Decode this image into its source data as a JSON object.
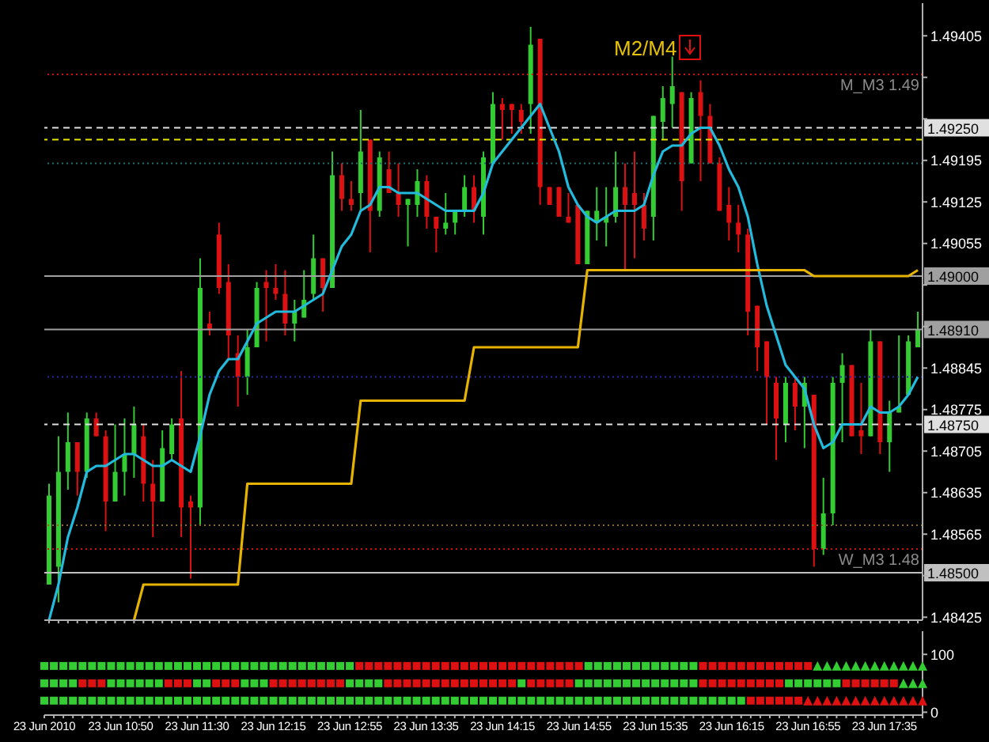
{
  "chart_data": [
    {
      "type": "candlestick",
      "categories": [
        null,
        null,
        null,
        null,
        null,
        null,
        null,
        null,
        null,
        null,
        null,
        null,
        null,
        null,
        null,
        null,
        null,
        null,
        null,
        null,
        null,
        null,
        null,
        null,
        null,
        null,
        null,
        null,
        null,
        null,
        null,
        null,
        null,
        null,
        null,
        null,
        null,
        null,
        null,
        null,
        null,
        null,
        null,
        null,
        null,
        null,
        null,
        null,
        null,
        null,
        null,
        null,
        null,
        null,
        null,
        null,
        null,
        null,
        null,
        null,
        null,
        null,
        null,
        null,
        null,
        null,
        null,
        null,
        null,
        null,
        null,
        null,
        null,
        null,
        null,
        null,
        null,
        null,
        null,
        null,
        null,
        null,
        null,
        null,
        null,
        null,
        null,
        null,
        null,
        null,
        null,
        null,
        null
      ],
      "ohlc": [
        [
          1.4848,
          1.4865,
          1.4848,
          1.4863
        ],
        [
          1.4851,
          1.4873,
          1.4845,
          1.4867
        ],
        [
          1.4867,
          1.4877,
          1.4864,
          1.4872
        ],
        [
          1.4872,
          1.4872,
          1.4863,
          1.4867
        ],
        [
          1.4867,
          1.4877,
          1.4866,
          1.4876
        ],
        [
          1.4876,
          1.4877,
          1.4873,
          1.4873
        ],
        [
          1.4873,
          1.4874,
          1.4857,
          1.4862
        ],
        [
          1.4862,
          1.4875,
          1.4862,
          1.4867
        ],
        [
          1.4867,
          1.4876,
          1.4863,
          1.487
        ],
        [
          1.487,
          1.4878,
          1.4866,
          1.4875
        ],
        [
          1.4873,
          1.4875,
          1.4862,
          1.4865
        ],
        [
          1.4865,
          1.4869,
          1.4856,
          1.4862
        ],
        [
          1.4862,
          1.4874,
          1.4862,
          1.4871
        ],
        [
          1.487,
          1.4876,
          1.4869,
          1.4875
        ],
        [
          1.4876,
          1.4884,
          1.4856,
          1.4861
        ],
        [
          1.4862,
          1.4863,
          1.4849,
          1.4861
        ],
        [
          1.4861,
          1.4903,
          1.4858,
          1.4898
        ],
        [
          1.4892,
          1.4894,
          1.489,
          1.4891
        ],
        [
          1.4907,
          1.4909,
          1.4897,
          1.4898
        ],
        [
          1.4899,
          1.4902,
          1.4886,
          1.489
        ],
        [
          1.4887,
          1.489,
          1.4878,
          1.4883
        ],
        [
          1.4883,
          1.4891,
          1.488,
          1.4888
        ],
        [
          1.4888,
          1.4899,
          1.4888,
          1.4898
        ],
        [
          1.4899,
          1.4901,
          1.4889,
          1.4898
        ],
        [
          1.4898,
          1.4902,
          1.4896,
          1.4897
        ],
        [
          1.4897,
          1.4901,
          1.489,
          1.4892
        ],
        [
          1.4892,
          1.4896,
          1.4889,
          1.4894
        ],
        [
          1.4893,
          1.4901,
          1.4893,
          1.4896
        ],
        [
          1.4897,
          1.4907,
          1.4896,
          1.4903
        ],
        [
          1.4903,
          1.4903,
          1.4894,
          1.4898
        ],
        [
          1.4898,
          1.4921,
          1.4898,
          1.4917
        ],
        [
          1.4917,
          1.4919,
          1.4911,
          1.4913
        ],
        [
          1.4913,
          1.4916,
          1.4911,
          1.4912
        ],
        [
          1.4914,
          1.4928,
          1.4911,
          1.4921
        ],
        [
          1.4923,
          1.4923,
          1.4904,
          1.4911
        ],
        [
          1.4911,
          1.4921,
          1.491,
          1.492
        ],
        [
          1.4918,
          1.4921,
          1.4914,
          1.4914
        ],
        [
          1.4914,
          1.4919,
          1.491,
          1.4912
        ],
        [
          1.4912,
          1.4913,
          1.4905,
          1.4913
        ],
        [
          1.4912,
          1.4918,
          1.491,
          1.4916
        ],
        [
          1.4916,
          1.4917,
          1.4908,
          1.491
        ],
        [
          1.491,
          1.491,
          1.4904,
          1.4908
        ],
        [
          1.4908,
          1.4914,
          1.4907,
          1.4909
        ],
        [
          1.4909,
          1.4911,
          1.4907,
          1.4911
        ],
        [
          1.4911,
          1.4917,
          1.491,
          1.4915
        ],
        [
          1.4915,
          1.4917,
          1.4909,
          1.4911
        ],
        [
          1.491,
          1.4921,
          1.4907,
          1.492
        ],
        [
          1.4919,
          1.4931,
          1.4919,
          1.4929
        ],
        [
          1.4929,
          1.493,
          1.4923,
          1.4928
        ],
        [
          1.4929,
          1.4929,
          1.4924,
          1.4928
        ],
        [
          1.4928,
          1.4929,
          1.4924,
          1.4926
        ],
        [
          1.4929,
          1.4942,
          1.4924,
          1.4939
        ],
        [
          1.494,
          1.494,
          1.4912,
          1.4915
        ],
        [
          1.4915,
          1.4915,
          1.4912,
          1.4912
        ],
        [
          1.4915,
          1.4915,
          1.491,
          1.491
        ],
        [
          1.491,
          1.4914,
          1.4909,
          1.4909
        ],
        [
          1.4912,
          1.4912,
          1.4902,
          1.4902
        ],
        [
          1.4902,
          1.4911,
          1.4902,
          1.4911
        ],
        [
          1.4909,
          1.4915,
          1.4906,
          1.4911
        ],
        [
          1.4909,
          1.4915,
          1.4905,
          1.491
        ],
        [
          1.491,
          1.4921,
          1.4909,
          1.4915
        ],
        [
          1.4915,
          1.4919,
          1.4901,
          1.4912
        ],
        [
          1.4914,
          1.4921,
          1.4903,
          1.4912
        ],
        [
          1.4912,
          1.4914,
          1.4906,
          1.4908
        ],
        [
          1.491,
          1.4927,
          1.4906,
          1.4927
        ],
        [
          1.4926,
          1.4932,
          1.4923,
          1.493
        ],
        [
          1.4929,
          1.4937,
          1.4925,
          1.4932
        ],
        [
          1.4931,
          1.4931,
          1.4911,
          1.4916
        ],
        [
          1.4919,
          1.4931,
          1.4919,
          1.493
        ],
        [
          1.4931,
          1.4933,
          1.4916,
          1.4927
        ],
        [
          1.4927,
          1.4929,
          1.4919,
          1.4919
        ],
        [
          1.4919,
          1.492,
          1.4911,
          1.4911
        ],
        [
          1.4912,
          1.4915,
          1.4906,
          1.4909
        ],
        [
          1.4909,
          1.4912,
          1.4904,
          1.4907
        ],
        [
          1.4907,
          1.4908,
          1.489,
          1.4894
        ],
        [
          1.4895,
          1.4895,
          1.4884,
          1.4888
        ],
        [
          1.4889,
          1.4889,
          1.4875,
          1.4883
        ],
        [
          1.4882,
          1.4883,
          1.4869,
          1.4876
        ],
        [
          1.4875,
          1.4883,
          1.4872,
          1.4882
        ],
        [
          1.4882,
          1.4883,
          1.4874,
          1.4878
        ],
        [
          1.4878,
          1.4883,
          1.4871,
          1.4882
        ],
        [
          1.488,
          1.488,
          1.4851,
          1.4854
        ],
        [
          1.4854,
          1.4866,
          1.4853,
          1.486
        ],
        [
          1.486,
          1.4883,
          1.4858,
          1.4882
        ],
        [
          1.4882,
          1.4887,
          1.4872,
          1.4885
        ],
        [
          1.4885,
          1.4885,
          1.4873,
          1.4873
        ],
        [
          1.4874,
          1.4882,
          1.487,
          1.4873
        ],
        [
          1.4873,
          1.4891,
          1.4873,
          1.4889
        ],
        [
          1.4889,
          1.4889,
          1.487,
          1.4872
        ],
        [
          1.4872,
          1.4879,
          1.4867,
          1.4877
        ],
        [
          1.4877,
          1.489,
          1.4877,
          1.4878
        ],
        [
          1.488,
          1.489,
          1.488,
          1.4889
        ],
        [
          1.4888,
          1.4894,
          1.4888,
          1.4891
        ]
      ],
      "colors": [
        "#33cc33",
        "#33cc33",
        "#33cc33",
        "#dd1111",
        "#33cc33",
        "#dd1111",
        "#dd1111",
        "#33cc33",
        "#33cc33",
        "#33cc33",
        "#dd1111",
        "#dd1111",
        "#33cc33",
        "#33cc33",
        "#dd1111",
        "#dd1111",
        "#33cc33",
        "#dd1111",
        "#dd1111",
        "#dd1111",
        "#dd1111",
        "#33cc33",
        "#33cc33",
        "#dd1111",
        "#dd1111",
        "#dd1111",
        "#33cc33",
        "#33cc33",
        "#33cc33",
        "#dd1111",
        "#33cc33",
        "#dd1111",
        "#dd1111",
        "#33cc33",
        "#dd1111",
        "#33cc33",
        "#dd1111",
        "#dd1111",
        "#33cc33",
        "#33cc33",
        "#dd1111",
        "#dd1111",
        "#33cc33",
        "#33cc33",
        "#33cc33",
        "#dd1111",
        "#33cc33",
        "#33cc33",
        "#dd1111",
        "#dd1111",
        "#dd1111",
        "#33cc33",
        "#dd1111",
        "#dd1111",
        "#dd1111",
        "#dd1111",
        "#dd1111",
        "#33cc33",
        "#33cc33",
        "#33cc33",
        "#33cc33",
        "#dd1111",
        "#dd1111",
        "#dd1111",
        "#33cc33",
        "#33cc33",
        "#33cc33",
        "#dd1111",
        "#33cc33",
        "#dd1111",
        "#dd1111",
        "#dd1111",
        "#dd1111",
        "#dd1111",
        "#dd1111",
        "#dd1111",
        "#dd1111",
        "#dd1111",
        "#33cc33",
        "#dd1111",
        "#33cc33",
        "#dd1111",
        "#33cc33",
        "#33cc33",
        "#33cc33",
        "#dd1111",
        "#dd1111",
        "#33cc33",
        "#dd1111",
        "#33cc33",
        "#33cc33",
        "#33cc33",
        "#33cc33"
      ],
      "series": [
        {
          "type": "line",
          "color": "#22bbdd",
          "values": [
            1.4842,
            1.4848,
            1.4856,
            1.4861,
            1.4867,
            1.4868,
            1.4868,
            1.4869,
            1.487,
            1.487,
            1.4869,
            1.4868,
            1.4868,
            1.4869,
            1.4868,
            1.4867,
            1.4873,
            1.488,
            1.4884,
            1.4886,
            1.4886,
            1.4889,
            1.4892,
            1.4893,
            1.4894,
            1.4894,
            1.4894,
            1.4895,
            1.4896,
            1.4897,
            1.4901,
            1.4905,
            1.4907,
            1.4911,
            1.4912,
            1.4915,
            1.4915,
            1.4914,
            1.4914,
            1.4914,
            1.4913,
            1.4912,
            1.4911,
            1.4911,
            1.4911,
            1.4911,
            1.4914,
            1.4919,
            1.4921,
            1.4923,
            1.4925,
            1.4927,
            1.4929,
            1.4925,
            1.4921,
            1.4915,
            1.4912,
            1.491,
            1.4909,
            1.491,
            1.4911,
            1.4911,
            1.4911,
            1.4912,
            1.4917,
            1.4921,
            1.4922,
            1.4922,
            1.4924,
            1.4925,
            1.4925,
            1.4922,
            1.4918,
            1.4915,
            1.491,
            1.4902,
            1.4895,
            1.489,
            1.4885,
            1.4883,
            1.4881,
            1.4875,
            1.4871,
            1.4872,
            1.4875,
            1.4875,
            1.4875,
            1.4878,
            1.4877,
            1.4877,
            1.4878,
            1.488,
            1.4883
          ]
        },
        {
          "type": "line",
          "color": "#e6b400",
          "values": [
            null,
            null,
            null,
            null,
            null,
            null,
            null,
            null,
            null,
            1.4842,
            1.4848,
            1.4848,
            1.4848,
            1.4848,
            1.4848,
            1.4848,
            1.4848,
            1.4848,
            1.4848,
            1.4848,
            1.4848,
            1.4865,
            1.4865,
            1.4865,
            1.4865,
            1.4865,
            1.4865,
            1.4865,
            1.4865,
            1.4865,
            1.4865,
            1.4865,
            1.4865,
            1.4879,
            1.4879,
            1.4879,
            1.4879,
            1.4879,
            1.4879,
            1.4879,
            1.4879,
            1.4879,
            1.4879,
            1.4879,
            1.4879,
            1.4888,
            1.4888,
            1.4888,
            1.4888,
            1.4888,
            1.4888,
            1.4888,
            1.4888,
            1.4888,
            1.4888,
            1.4888,
            1.4888,
            1.4901,
            1.4901,
            1.4901,
            1.4901,
            1.4901,
            1.4901,
            1.4901,
            1.4901,
            1.4901,
            1.4901,
            1.4901,
            1.4901,
            1.4901,
            1.4901,
            1.4901,
            1.4901,
            1.4901,
            1.4901,
            1.4901,
            1.4901,
            1.4901,
            1.4901,
            1.4901,
            1.4901,
            1.49,
            1.49,
            1.49,
            1.49,
            1.49,
            1.49,
            1.49,
            1.49,
            1.49,
            1.49,
            1.49,
            1.4901
          ]
        }
      ],
      "ylim": [
        1.4842,
        1.4946
      ],
      "yticks": [
        1.48425,
        {
          "value": 1.48495,
          "label": null
        },
        1.48565,
        1.48635,
        1.48705,
        1.48775,
        1.48845,
        {
          "value": 1.48915,
          "label": null
        },
        {
          "value": 1.48985,
          "label": null
        },
        1.49055,
        1.49125,
        1.49195,
        {
          "value": 1.49265,
          "label": null
        },
        {
          "value": 1.49335,
          "label": null
        },
        1.49405
      ],
      "tick_labels": "y",
      "ref_lines": [
        {
          "axis": "y",
          "value": 1.4934,
          "label": "M_M3 1.49",
          "color": "#cc1111",
          "line_style": "dotted"
        },
        {
          "axis": "y",
          "value": 1.4925,
          "label": "1.49250",
          "color": "#e0e0e0",
          "line_style": "dashed"
        },
        {
          "axis": "y",
          "value": 1.4923,
          "color": "#e6e600",
          "line_style": "dashed"
        },
        {
          "axis": "y",
          "value": 1.4919,
          "color": "#1f6f6f",
          "line_style": "dotted"
        },
        {
          "axis": "y",
          "value": 1.49,
          "label": "1.49000",
          "color": "#a0a0a0",
          "line_style": "solid"
        },
        {
          "axis": "y",
          "value": 1.4891,
          "label": "1.48910",
          "color": "#a0a0a0",
          "line_style": "solid"
        },
        {
          "axis": "y",
          "value": 1.4883,
          "color": "#2a2a99",
          "line_style": "dotted"
        },
        {
          "axis": "y",
          "value": 1.4875,
          "label": "1.48750",
          "color": "#e0e0e0",
          "line_style": "dashed"
        },
        {
          "axis": "y",
          "value": 1.4858,
          "color": "#8a6a20",
          "line_style": "dotted"
        },
        {
          "axis": "y",
          "value": 1.4854,
          "label": "W_M3 1.48",
          "color": "#cc1111",
          "line_style": "dotted"
        },
        {
          "axis": "y",
          "value": 1.485,
          "label": "1.48500",
          "color": "#c0c0c0",
          "line_style": "solid"
        }
      ],
      "annotations": [
        "M2/M4"
      ]
    },
    {
      "type": "scatter",
      "categories": [
        "23 Jun 2010",
        null,
        null,
        null,
        null,
        null,
        null,
        null,
        "23 Jun 10:50",
        null,
        null,
        null,
        null,
        null,
        null,
        null,
        "23 Jun 11:30",
        null,
        null,
        null,
        null,
        null,
        null,
        null,
        "23 Jun 12:15",
        null,
        null,
        null,
        null,
        null,
        null,
        null,
        "23 Jun 12:55",
        null,
        null,
        null,
        null,
        null,
        null,
        null,
        "23 Jun 13:35",
        null,
        null,
        null,
        null,
        null,
        null,
        null,
        "23 Jun 14:15",
        null,
        null,
        null,
        null,
        null,
        null,
        null,
        "23 Jun 14:55",
        null,
        null,
        null,
        null,
        null,
        null,
        null,
        "23 Jun 15:35",
        null,
        null,
        null,
        null,
        null,
        null,
        null,
        "23 Jun 16:15",
        null,
        null,
        null,
        null,
        null,
        null,
        null,
        "23 Jun 16:55",
        null,
        null,
        null,
        null,
        null,
        null,
        null,
        "23 Jun 17:35",
        null,
        null,
        null,
        null
      ],
      "ylim": [
        -5,
        140
      ],
      "yticks": [
        0,
        100
      ],
      "series": [
        {
          "marker": "square",
          "values": [
            80,
            80,
            80,
            80,
            80,
            80,
            80,
            80,
            80,
            80,
            80,
            80,
            80,
            80,
            80,
            80,
            80,
            80,
            80,
            80,
            80,
            80,
            80,
            80,
            80,
            80,
            80,
            80,
            80,
            80,
            80,
            80,
            80,
            80,
            80,
            80,
            80,
            80,
            80,
            80,
            80,
            80,
            80,
            80,
            80,
            80,
            80,
            80,
            80,
            80,
            80,
            80,
            80,
            80,
            80,
            80,
            80,
            80,
            80,
            80,
            80,
            80,
            80,
            80,
            80,
            80,
            80,
            80,
            80,
            80,
            80,
            80,
            80,
            80,
            80,
            80,
            80,
            80,
            80,
            80,
            80,
            null,
            null,
            null,
            null,
            null,
            null,
            null,
            null,
            null,
            null,
            null,
            null
          ],
          "colors": [
            "#33cc33",
            "#33cc33",
            "#33cc33",
            "#33cc33",
            "#33cc33",
            "#33cc33",
            "#33cc33",
            "#33cc33",
            "#33cc33",
            "#33cc33",
            "#33cc33",
            "#33cc33",
            "#33cc33",
            "#33cc33",
            "#33cc33",
            "#33cc33",
            "#33cc33",
            "#33cc33",
            "#33cc33",
            "#33cc33",
            "#33cc33",
            "#33cc33",
            "#33cc33",
            "#33cc33",
            "#33cc33",
            "#33cc33",
            "#33cc33",
            "#33cc33",
            "#33cc33",
            "#33cc33",
            "#33cc33",
            "#33cc33",
            "#33cc33",
            "#dd1111",
            "#dd1111",
            "#dd1111",
            "#dd1111",
            "#dd1111",
            "#dd1111",
            "#dd1111",
            "#dd1111",
            "#dd1111",
            "#dd1111",
            "#dd1111",
            "#dd1111",
            "#dd1111",
            "#dd1111",
            "#dd1111",
            "#dd1111",
            "#dd1111",
            "#dd1111",
            "#dd1111",
            "#dd1111",
            "#dd1111",
            "#dd1111",
            "#dd1111",
            "#dd1111",
            "#33cc33",
            "#33cc33",
            "#33cc33",
            "#33cc33",
            "#33cc33",
            "#33cc33",
            "#33cc33",
            "#33cc33",
            "#33cc33",
            "#33cc33",
            "#33cc33",
            "#33cc33",
            "#dd1111",
            "#dd1111",
            "#dd1111",
            "#dd1111",
            "#dd1111",
            "#dd1111",
            "#dd1111",
            "#dd1111",
            "#dd1111",
            "#dd1111",
            "#dd1111",
            "#dd1111",
            null,
            null,
            null,
            null,
            null,
            null,
            null,
            null,
            null,
            null,
            null,
            null
          ]
        },
        {
          "marker": "triangle",
          "color": "#33cc33",
          "values": [
            null,
            null,
            null,
            null,
            null,
            null,
            null,
            null,
            null,
            null,
            null,
            null,
            null,
            null,
            null,
            null,
            null,
            null,
            null,
            null,
            null,
            null,
            null,
            null,
            null,
            null,
            null,
            null,
            null,
            null,
            null,
            null,
            null,
            null,
            null,
            null,
            null,
            null,
            null,
            null,
            null,
            null,
            null,
            null,
            null,
            null,
            null,
            null,
            null,
            null,
            null,
            null,
            null,
            null,
            null,
            null,
            null,
            null,
            null,
            null,
            null,
            null,
            null,
            null,
            null,
            null,
            null,
            null,
            null,
            null,
            null,
            null,
            null,
            null,
            null,
            null,
            null,
            null,
            null,
            null,
            null,
            80,
            80,
            80,
            80,
            80,
            80,
            80,
            80,
            80,
            80,
            80,
            80
          ]
        },
        {
          "marker": "square",
          "values": [
            50,
            50,
            50,
            50,
            50,
            50,
            50,
            50,
            50,
            50,
            50,
            50,
            50,
            50,
            50,
            50,
            50,
            50,
            50,
            50,
            50,
            50,
            50,
            50,
            50,
            50,
            50,
            50,
            50,
            50,
            50,
            50,
            50,
            50,
            50,
            50,
            50,
            50,
            50,
            50,
            50,
            50,
            50,
            50,
            50,
            50,
            50,
            50,
            50,
            50,
            50,
            50,
            50,
            50,
            50,
            50,
            50,
            50,
            50,
            50,
            50,
            50,
            50,
            50,
            50,
            50,
            50,
            50,
            50,
            50,
            50,
            50,
            50,
            50,
            50,
            50,
            50,
            50,
            50,
            50,
            50,
            50,
            50,
            50,
            50,
            50,
            50,
            50,
            50,
            50,
            null,
            null,
            null
          ],
          "colors": [
            "#33cc33",
            "#33cc33",
            "#33cc33",
            "#33cc33",
            "#dd1111",
            "#dd1111",
            "#dd1111",
            "#33cc33",
            "#33cc33",
            "#33cc33",
            "#33cc33",
            "#33cc33",
            "#33cc33",
            "#dd1111",
            "#dd1111",
            "#dd1111",
            "#33cc33",
            "#33cc33",
            "#dd1111",
            "#dd1111",
            "#dd1111",
            "#33cc33",
            "#33cc33",
            "#33cc33",
            "#dd1111",
            "#dd1111",
            "#dd1111",
            "#dd1111",
            "#dd1111",
            "#dd1111",
            "#dd1111",
            "#dd1111",
            "#33cc33",
            "#33cc33",
            "#33cc33",
            "#33cc33",
            "#dd1111",
            "#dd1111",
            "#dd1111",
            "#dd1111",
            "#dd1111",
            "#dd1111",
            "#dd1111",
            "#dd1111",
            "#dd1111",
            "#dd1111",
            "#dd1111",
            "#dd1111",
            "#dd1111",
            "#dd1111",
            "#33cc33",
            "#dd1111",
            "#dd1111",
            "#dd1111",
            "#dd1111",
            "#dd1111",
            "#33cc33",
            "#33cc33",
            "#33cc33",
            "#33cc33",
            "#33cc33",
            "#33cc33",
            "#33cc33",
            "#33cc33",
            "#33cc33",
            "#33cc33",
            "#33cc33",
            "#33cc33",
            "#33cc33",
            "#dd1111",
            "#dd1111",
            "#dd1111",
            "#dd1111",
            "#dd1111",
            "#dd1111",
            "#dd1111",
            "#dd1111",
            "#dd1111",
            "#33cc33",
            "#33cc33",
            "#33cc33",
            "#33cc33",
            "#33cc33",
            "#33cc33",
            "#dd1111",
            "#dd1111",
            "#dd1111",
            "#dd1111",
            "#dd1111",
            "#dd1111",
            null,
            null,
            null
          ]
        },
        {
          "marker": "triangle",
          "color": "#33cc33",
          "values": [
            null,
            null,
            null,
            null,
            null,
            null,
            null,
            null,
            null,
            null,
            null,
            null,
            null,
            null,
            null,
            null,
            null,
            null,
            null,
            null,
            null,
            null,
            null,
            null,
            null,
            null,
            null,
            null,
            null,
            null,
            null,
            null,
            null,
            null,
            null,
            null,
            null,
            null,
            null,
            null,
            null,
            null,
            null,
            null,
            null,
            null,
            null,
            null,
            null,
            null,
            null,
            null,
            null,
            null,
            null,
            null,
            null,
            null,
            null,
            null,
            null,
            null,
            null,
            null,
            null,
            null,
            null,
            null,
            null,
            null,
            null,
            null,
            null,
            null,
            null,
            null,
            null,
            null,
            null,
            null,
            null,
            null,
            null,
            null,
            null,
            null,
            null,
            null,
            null,
            null,
            50,
            50,
            50
          ]
        },
        {
          "marker": "square",
          "values": [
            20,
            20,
            20,
            20,
            20,
            20,
            20,
            20,
            20,
            20,
            20,
            20,
            20,
            20,
            20,
            20,
            20,
            20,
            20,
            20,
            20,
            20,
            20,
            20,
            20,
            20,
            20,
            20,
            20,
            20,
            20,
            20,
            20,
            20,
            20,
            20,
            20,
            20,
            20,
            20,
            20,
            20,
            20,
            20,
            20,
            20,
            20,
            20,
            20,
            20,
            20,
            20,
            20,
            20,
            20,
            20,
            20,
            20,
            20,
            20,
            20,
            20,
            20,
            20,
            20,
            20,
            20,
            20,
            20,
            20,
            20,
            20,
            20,
            20,
            20,
            20,
            20,
            20,
            20,
            20,
            null,
            null,
            null,
            null,
            null,
            null,
            null,
            null,
            null,
            null,
            null,
            null,
            null
          ],
          "colors": [
            "#33cc33",
            "#33cc33",
            "#33cc33",
            "#33cc33",
            "#33cc33",
            "#33cc33",
            "#33cc33",
            "#33cc33",
            "#33cc33",
            "#33cc33",
            "#33cc33",
            "#33cc33",
            "#33cc33",
            "#33cc33",
            "#33cc33",
            "#33cc33",
            "#33cc33",
            "#33cc33",
            "#33cc33",
            "#33cc33",
            "#33cc33",
            "#33cc33",
            "#33cc33",
            "#33cc33",
            "#33cc33",
            "#33cc33",
            "#33cc33",
            "#33cc33",
            "#33cc33",
            "#33cc33",
            "#33cc33",
            "#33cc33",
            "#33cc33",
            "#33cc33",
            "#33cc33",
            "#33cc33",
            "#33cc33",
            "#33cc33",
            "#33cc33",
            "#33cc33",
            "#33cc33",
            "#33cc33",
            "#33cc33",
            "#33cc33",
            "#33cc33",
            "#33cc33",
            "#33cc33",
            "#33cc33",
            "#33cc33",
            "#33cc33",
            "#33cc33",
            "#33cc33",
            "#33cc33",
            "#33cc33",
            "#33cc33",
            "#33cc33",
            "#33cc33",
            "#33cc33",
            "#33cc33",
            "#33cc33",
            "#33cc33",
            "#33cc33",
            "#33cc33",
            "#33cc33",
            "#33cc33",
            "#33cc33",
            "#33cc33",
            "#33cc33",
            "#33cc33",
            "#33cc33",
            "#33cc33",
            "#33cc33",
            "#33cc33",
            "#33cc33",
            "#dd1111",
            "#dd1111",
            "#dd1111",
            "#dd1111",
            "#dd1111",
            "#dd1111",
            null,
            null,
            null,
            null,
            null,
            null,
            null,
            null,
            null,
            null,
            null,
            null,
            null
          ]
        },
        {
          "marker": "triangle",
          "color": "#dd1111",
          "values": [
            null,
            null,
            null,
            null,
            null,
            null,
            null,
            null,
            null,
            null,
            null,
            null,
            null,
            null,
            null,
            null,
            null,
            null,
            null,
            null,
            null,
            null,
            null,
            null,
            null,
            null,
            null,
            null,
            null,
            null,
            null,
            null,
            null,
            null,
            null,
            null,
            null,
            null,
            null,
            null,
            null,
            null,
            null,
            null,
            null,
            null,
            null,
            null,
            null,
            null,
            null,
            null,
            null,
            null,
            null,
            null,
            null,
            null,
            null,
            null,
            null,
            null,
            null,
            null,
            null,
            null,
            null,
            null,
            null,
            null,
            null,
            null,
            null,
            null,
            null,
            null,
            null,
            null,
            null,
            null,
            20,
            20,
            20,
            20,
            20,
            20,
            20,
            20,
            20,
            20,
            20,
            20,
            20
          ]
        }
      ]
    }
  ]
}
